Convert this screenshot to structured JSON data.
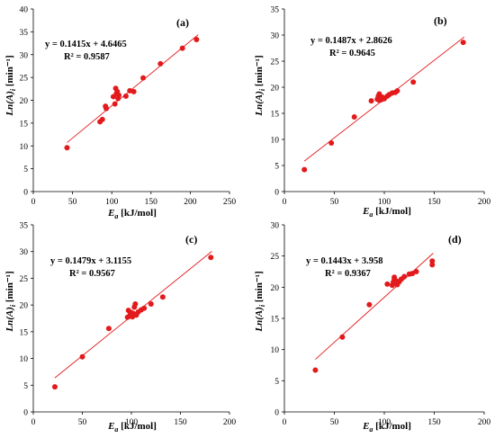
{
  "chart_data": [
    {
      "type": "scatter",
      "panel_label": "(a)",
      "xlabel": {
        "main": "E",
        "sub": "a",
        "unit": " [kJ/mol]"
      },
      "ylabel": {
        "main": "Ln(A)",
        "sub": "i",
        "unit": " [min⁻¹]"
      },
      "xlim": [
        0,
        250
      ],
      "ylim": [
        0,
        40
      ],
      "xticks": [
        0,
        50,
        100,
        150,
        200,
        250
      ],
      "yticks": [
        0,
        5,
        10,
        15,
        20,
        25,
        30,
        35,
        40
      ],
      "equation": "y = 0.1415x + 4.6465",
      "r2": "R² = 0.9587",
      "trendline": {
        "slope": 0.1415,
        "intercept": 4.6465,
        "x_range": [
          43,
          210
        ]
      },
      "marker_color": "#e31a1c",
      "line_color": "#e31a1c",
      "x": [
        43,
        85,
        88,
        92,
        93,
        102,
        104,
        105,
        106,
        107,
        108,
        109,
        118,
        123,
        128,
        140,
        162,
        190,
        208
      ],
      "y": [
        9.6,
        15.3,
        15.8,
        18.7,
        18.2,
        20.8,
        19.2,
        22.6,
        21.5,
        21.9,
        20.4,
        21.1,
        20.9,
        22.1,
        21.9,
        24.9,
        28.0,
        31.4,
        33.3
      ]
    },
    {
      "type": "scatter",
      "panel_label": "(b)",
      "xlabel": {
        "main": "E",
        "sub": "a",
        "unit": " [kJ/mol]"
      },
      "ylabel": {
        "main": "Ln(A)",
        "sub": "i",
        "unit": " [min⁻¹]"
      },
      "xlim": [
        0,
        200
      ],
      "ylim": [
        0,
        35
      ],
      "xticks": [
        0,
        50,
        100,
        150,
        200
      ],
      "yticks": [
        0,
        5,
        10,
        15,
        20,
        25,
        30,
        35
      ],
      "equation": "y = 0.1487x + 2.8626",
      "r2": "R² = 0.9645",
      "trendline": {
        "slope": 0.1487,
        "intercept": 2.8626,
        "x_range": [
          20,
          180
        ]
      },
      "marker_color": "#e31a1c",
      "line_color": "#e31a1c",
      "x": [
        20,
        47,
        70,
        87,
        93,
        94,
        95,
        95,
        96,
        97,
        98,
        100,
        103,
        105,
        108,
        111,
        113,
        129,
        179
      ],
      "y": [
        4.2,
        9.3,
        14.3,
        17.4,
        17.7,
        18.3,
        18.7,
        17.5,
        18.0,
        17.6,
        18.1,
        17.8,
        18.3,
        18.6,
        18.9,
        19.0,
        19.3,
        21.0,
        28.6
      ]
    },
    {
      "type": "scatter",
      "panel_label": "(c)",
      "xlabel": {
        "main": "E",
        "sub": "a",
        "unit": " [kJ/mol]"
      },
      "ylabel": {
        "main": "Ln(A)",
        "sub": "i",
        "unit": " [min⁻¹]"
      },
      "xlim": [
        0,
        200
      ],
      "ylim": [
        0,
        35
      ],
      "xticks": [
        0,
        50,
        100,
        150,
        200
      ],
      "yticks": [
        0,
        5,
        10,
        15,
        20,
        25,
        30,
        35
      ],
      "equation": "y = 0.1479x + 3.1155",
      "r2": "R² = 0.9567",
      "trendline": {
        "slope": 0.1479,
        "intercept": 3.1155,
        "x_range": [
          22,
          182
        ]
      },
      "marker_color": "#e31a1c",
      "line_color": "#e31a1c",
      "x": [
        22,
        50,
        77,
        96,
        97,
        98,
        99,
        100,
        101,
        102,
        103,
        104,
        105,
        107,
        110,
        113,
        120,
        132,
        181
      ],
      "y": [
        4.7,
        10.3,
        15.6,
        17.7,
        19.0,
        17.9,
        18.3,
        18.6,
        17.8,
        18.4,
        19.6,
        20.2,
        18.1,
        18.7,
        19.1,
        19.4,
        20.2,
        21.5,
        28.9
      ]
    },
    {
      "type": "scatter",
      "panel_label": "(d)",
      "xlabel": {
        "main": "E",
        "sub": "a",
        "unit": " [kJ/mol]"
      },
      "ylabel": {
        "main": "Ln(A)",
        "sub": "i",
        "unit": " [min⁻¹]"
      },
      "xlim": [
        0,
        200
      ],
      "ylim": [
        0,
        30
      ],
      "xticks": [
        0,
        50,
        100,
        150,
        200
      ],
      "yticks": [
        0,
        5,
        10,
        15,
        20,
        25,
        30
      ],
      "equation": "y = 0.1443x + 3.958",
      "r2": "R² = 0.9367",
      "trendline": {
        "slope": 0.1443,
        "intercept": 3.958,
        "x_range": [
          31,
          149
        ]
      },
      "marker_color": "#e31a1c",
      "line_color": "#e31a1c",
      "x": [
        31,
        58,
        85,
        103,
        108,
        109,
        110,
        110,
        111,
        112,
        113,
        115,
        117,
        120,
        125,
        128,
        132,
        148,
        148
      ],
      "y": [
        6.7,
        12.0,
        17.2,
        20.5,
        20.3,
        20.8,
        21.2,
        21.6,
        20.6,
        21.0,
        20.4,
        20.9,
        21.3,
        21.7,
        22.1,
        22.2,
        22.5,
        23.6,
        24.2
      ]
    }
  ]
}
